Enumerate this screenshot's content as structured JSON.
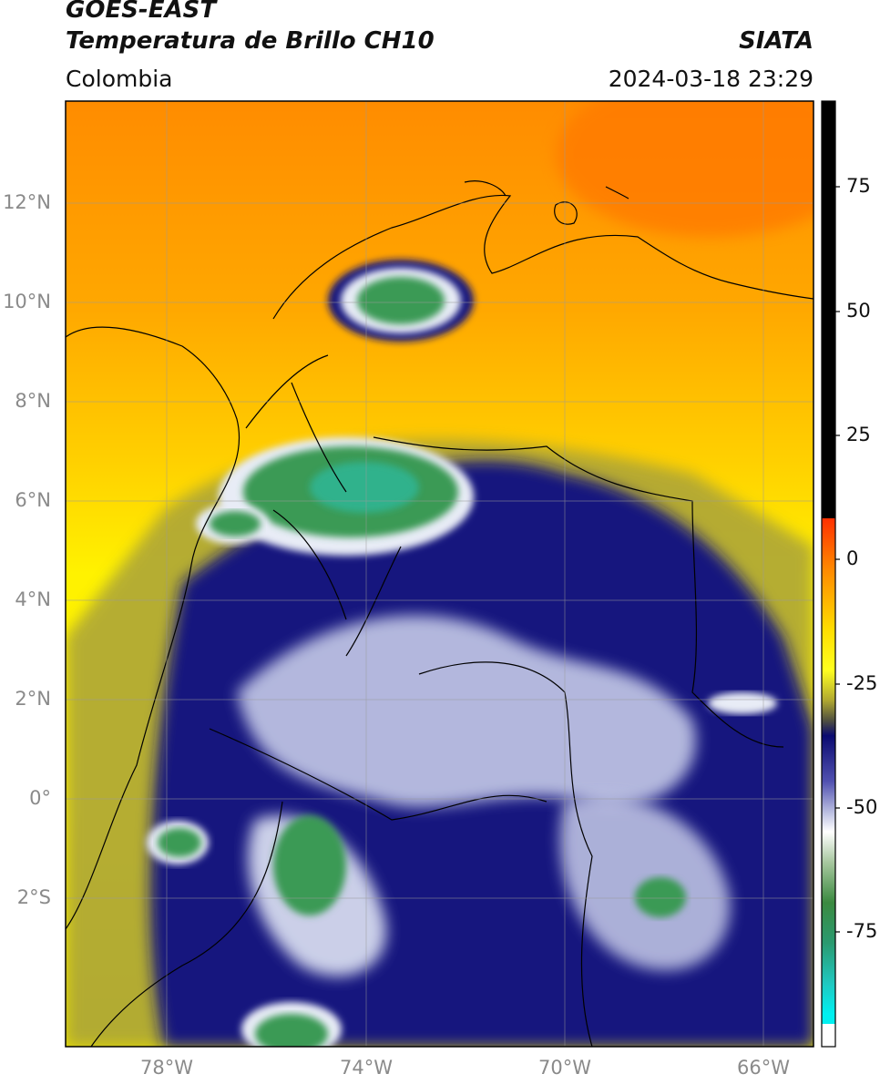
{
  "header": {
    "satellite": "GOES-EAST",
    "product": "Temperatura de Brillo CH10",
    "brand": "SIATA",
    "region": "Colombia",
    "timestamp": "2024-03-18 23:29"
  },
  "map": {
    "lat_labels": [
      "12°N",
      "10°N",
      "8°N",
      "6°N",
      "4°N",
      "2°N",
      "0°",
      "2°S"
    ],
    "lat_values": [
      12,
      10,
      8,
      6,
      4,
      2,
      0,
      -2
    ],
    "lon_labels": [
      "78°W",
      "74°W",
      "70°W",
      "66°W"
    ],
    "lon_values": [
      -78,
      -74,
      -70,
      -66
    ],
    "extent": {
      "lon_min": -80,
      "lon_max": -65,
      "lat_min": -5,
      "lat_max": 14
    }
  },
  "colorbar": {
    "tick_labels": [
      "75",
      "50",
      "25",
      "0",
      "-25",
      "-50",
      "-75"
    ],
    "tick_values": [
      75,
      50,
      25,
      0,
      -25,
      -50,
      -75
    ],
    "range": [
      -100,
      90
    ]
  },
  "colors": {
    "warm": "#ff8c00",
    "mid": "#ffee00",
    "olive": "#a9a23a",
    "navy": "#10107a",
    "white": "#e8ecf6",
    "green": "#3b9a55",
    "cyan": "#20c0b0"
  }
}
